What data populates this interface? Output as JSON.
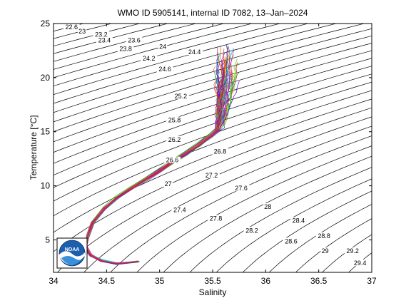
{
  "chart_data": {
    "type": "line",
    "title": "WMO ID 5905141, internal ID 7082, 13–Jan–2024",
    "xlabel": "Salinity",
    "ylabel": "Temperature [°C]",
    "xlim": [
      34,
      37
    ],
    "ylim": [
      2,
      25
    ],
    "xticks": [
      34,
      34.5,
      35,
      35.5,
      36,
      36.5,
      37
    ],
    "xtick_labels": [
      "34",
      "34.5",
      "35",
      "35.5",
      "36",
      "36.5",
      "37"
    ],
    "yticks": [
      5,
      10,
      15,
      20,
      25
    ],
    "ytick_labels": [
      "5",
      "10",
      "15",
      "20",
      "25"
    ],
    "grid": false,
    "logo": "NOAA",
    "density_contours": {
      "levels": [
        22.6,
        22.8,
        23.0,
        23.2,
        23.4,
        23.6,
        23.8,
        24.0,
        24.2,
        24.4,
        24.6,
        24.8,
        25.0,
        25.2,
        25.4,
        25.6,
        25.8,
        26.0,
        26.2,
        26.4,
        26.6,
        26.8,
        27.0,
        27.2,
        27.4,
        27.6,
        27.8,
        28.0,
        28.2,
        28.4,
        28.6,
        28.8,
        29.0,
        29.2,
        29.4
      ],
      "labels": [
        {
          "text": "22.6",
          "s": 34.17,
          "t": 24.6
        },
        {
          "text": "23",
          "s": 34.27,
          "t": 24.2
        },
        {
          "text": "23.2",
          "s": 34.45,
          "t": 23.9
        },
        {
          "text": "23.4",
          "s": 34.48,
          "t": 23.4
        },
        {
          "text": "23.6",
          "s": 34.76,
          "t": 23.4
        },
        {
          "text": "23.8",
          "s": 34.68,
          "t": 22.6
        },
        {
          "text": "24",
          "s": 35.03,
          "t": 22.8
        },
        {
          "text": "24.4",
          "s": 35.33,
          "t": 22.3
        },
        {
          "text": "24.2",
          "s": 34.9,
          "t": 21.7
        },
        {
          "text": "24.6",
          "s": 35.05,
          "t": 20.7
        },
        {
          "text": "25.2",
          "s": 35.2,
          "t": 18.2
        },
        {
          "text": "25.8",
          "s": 35.14,
          "t": 16.0
        },
        {
          "text": "26.2",
          "s": 35.14,
          "t": 14.2
        },
        {
          "text": "26.6",
          "s": 35.12,
          "t": 12.3
        },
        {
          "text": "26.8",
          "s": 35.57,
          "t": 13.1
        },
        {
          "text": "27",
          "s": 35.08,
          "t": 10.1
        },
        {
          "text": "27.2",
          "s": 35.49,
          "t": 10.9
        },
        {
          "text": "27.4",
          "s": 35.19,
          "t": 7.7
        },
        {
          "text": "27.6",
          "s": 35.77,
          "t": 9.7
        },
        {
          "text": "27.8",
          "s": 35.53,
          "t": 6.9
        },
        {
          "text": "28",
          "s": 36.02,
          "t": 8.0
        },
        {
          "text": "28.2",
          "s": 35.87,
          "t": 5.8
        },
        {
          "text": "28.4",
          "s": 36.31,
          "t": 6.7
        },
        {
          "text": "28.6",
          "s": 36.24,
          "t": 4.8
        },
        {
          "text": "28.8",
          "s": 36.55,
          "t": 5.3
        },
        {
          "text": "29",
          "s": 36.56,
          "t": 3.9
        },
        {
          "text": "29.2",
          "s": 36.82,
          "t": 3.9
        },
        {
          "text": "29.4",
          "s": 36.89,
          "t": 2.8
        }
      ]
    },
    "profiles": {
      "count": 60,
      "deep_branch": [
        [
          34.8,
          3.0
        ],
        [
          34.6,
          2.8
        ],
        [
          34.45,
          3.1
        ],
        [
          34.35,
          3.6
        ],
        [
          34.3,
          4.4
        ],
        [
          34.33,
          5.5
        ],
        [
          34.37,
          6.6
        ],
        [
          34.48,
          7.9
        ],
        [
          34.6,
          8.9
        ],
        [
          34.74,
          9.8
        ],
        [
          34.87,
          10.6
        ],
        [
          35.0,
          11.4
        ],
        [
          35.12,
          12.2
        ],
        [
          35.25,
          13.0
        ],
        [
          35.37,
          13.8
        ],
        [
          35.48,
          14.6
        ],
        [
          35.55,
          15.2
        ]
      ],
      "surface_mean_s": 35.63,
      "surface_spread_s": 0.11,
      "surface_t_max": 23.2
    }
  }
}
